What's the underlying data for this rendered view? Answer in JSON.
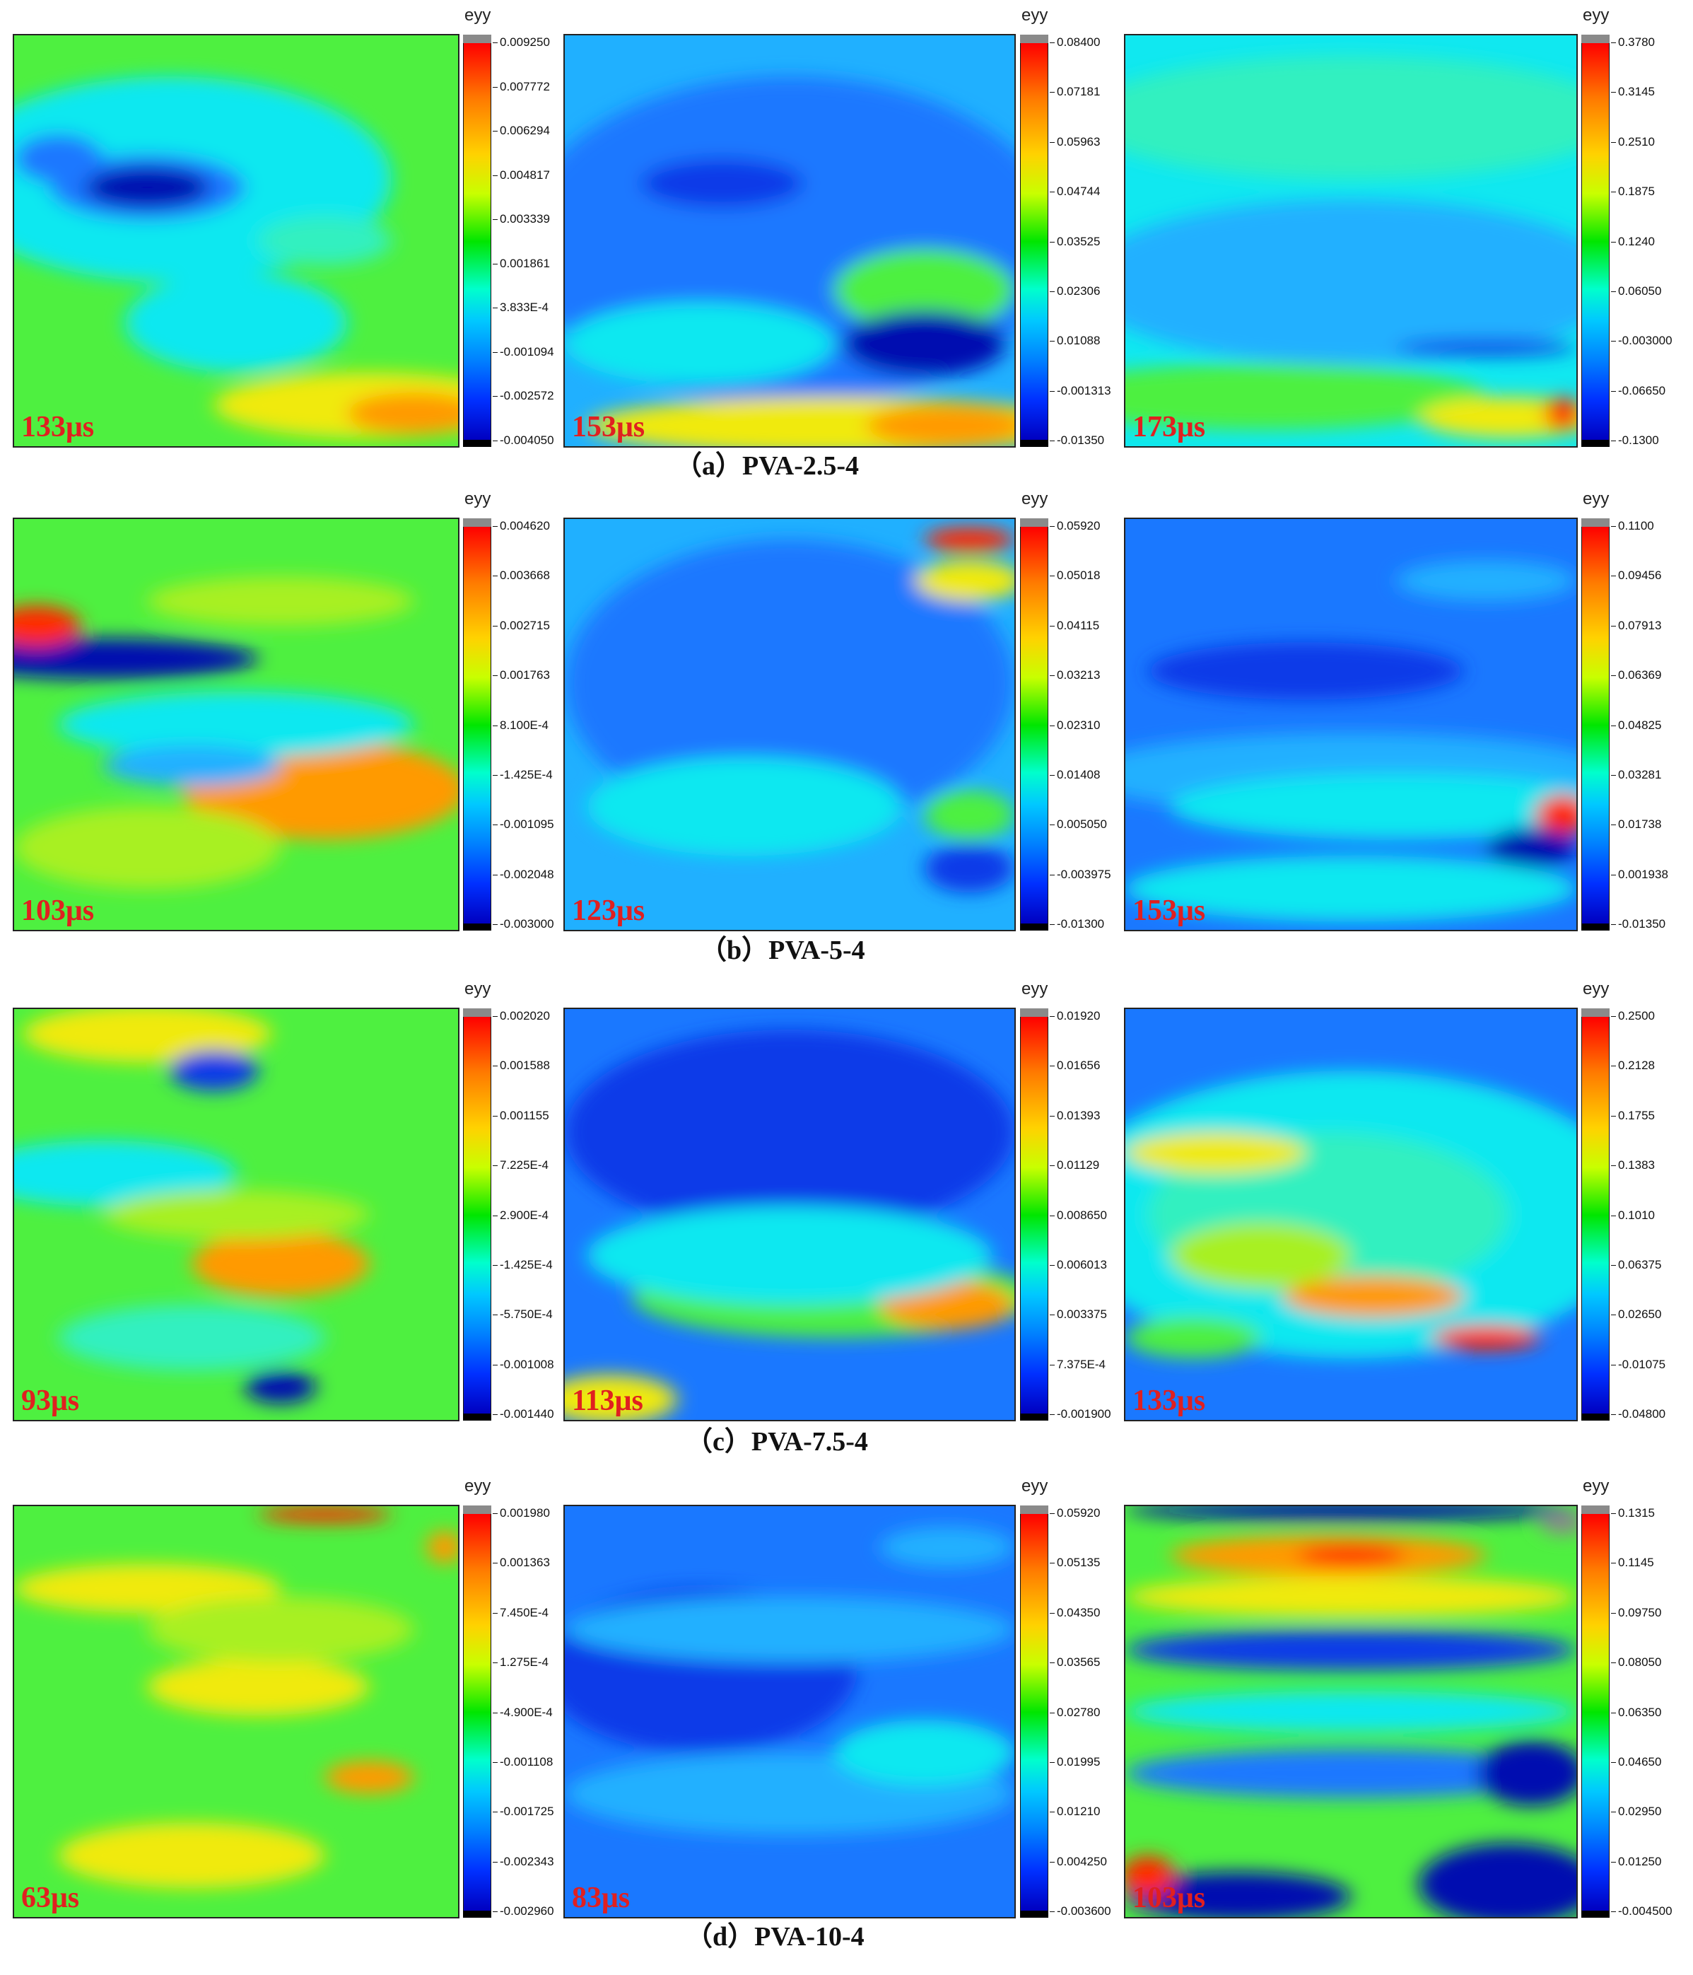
{
  "colorbar_title": "eyy",
  "rows": [
    {
      "caption": "（a）PVA-2.5-4",
      "panels": [
        {
          "time": "133μs",
          "ticks": [
            "0.009250",
            "0.007772",
            "0.006294",
            "0.004817",
            "0.003339",
            "0.001861",
            "3.833E-4",
            "-0.001094",
            "-0.002572",
            "-0.004050"
          ]
        },
        {
          "time": "153μs",
          "ticks": [
            "0.08400",
            "0.07181",
            "0.05963",
            "0.04744",
            "0.03525",
            "0.02306",
            "0.01088",
            "-0.001313",
            "-0.01350"
          ]
        },
        {
          "time": "173μs",
          "ticks": [
            "0.3780",
            "0.3145",
            "0.2510",
            "0.1875",
            "0.1240",
            "0.06050",
            "-0.003000",
            "-0.06650",
            "-0.1300"
          ]
        }
      ]
    },
    {
      "caption": "（b）PVA-5-4",
      "panels": [
        {
          "time": "103μs",
          "ticks": [
            "0.004620",
            "0.003668",
            "0.002715",
            "0.001763",
            "8.100E-4",
            "-1.425E-4",
            "-0.001095",
            "-0.002048",
            "-0.003000"
          ]
        },
        {
          "time": "123μs",
          "ticks": [
            "0.05920",
            "0.05018",
            "0.04115",
            "0.03213",
            "0.02310",
            "0.01408",
            "0.005050",
            "-0.003975",
            "-0.01300"
          ]
        },
        {
          "time": "153μs",
          "ticks": [
            "0.1100",
            "0.09456",
            "0.07913",
            "0.06369",
            "0.04825",
            "0.03281",
            "0.01738",
            "0.001938",
            "-0.01350"
          ]
        }
      ]
    },
    {
      "caption": "（c）PVA-7.5-4",
      "panels": [
        {
          "time": "93μs",
          "ticks": [
            "0.002020",
            "0.001588",
            "0.001155",
            "7.225E-4",
            "2.900E-4",
            "-1.425E-4",
            "-5.750E-4",
            "-0.001008",
            "-0.001440"
          ]
        },
        {
          "time": "113μs",
          "ticks": [
            "0.01920",
            "0.01656",
            "0.01393",
            "0.01129",
            "0.008650",
            "0.006013",
            "0.003375",
            "7.375E-4",
            "-0.001900"
          ]
        },
        {
          "time": "133μs",
          "ticks": [
            "0.2500",
            "0.2128",
            "0.1755",
            "0.1383",
            "0.1010",
            "0.06375",
            "0.02650",
            "-0.01075",
            "-0.04800"
          ]
        }
      ]
    },
    {
      "caption": "（d）PVA-10-4",
      "panels": [
        {
          "time": "63μs",
          "ticks": [
            "0.001980",
            "0.001363",
            "7.450E-4",
            "1.275E-4",
            "-4.900E-4",
            "-0.001108",
            "-0.001725",
            "-0.002343",
            "-0.002960"
          ]
        },
        {
          "time": "83μs",
          "ticks": [
            "0.05920",
            "0.05135",
            "0.04350",
            "0.03565",
            "0.02780",
            "0.01995",
            "0.01210",
            "0.004250",
            "-0.003600"
          ]
        },
        {
          "time": "103μs",
          "ticks": [
            "0.1315",
            "0.1145",
            "0.09750",
            "0.08050",
            "0.06350",
            "0.04650",
            "0.02950",
            "0.01250",
            "-0.004500"
          ]
        }
      ]
    }
  ]
}
